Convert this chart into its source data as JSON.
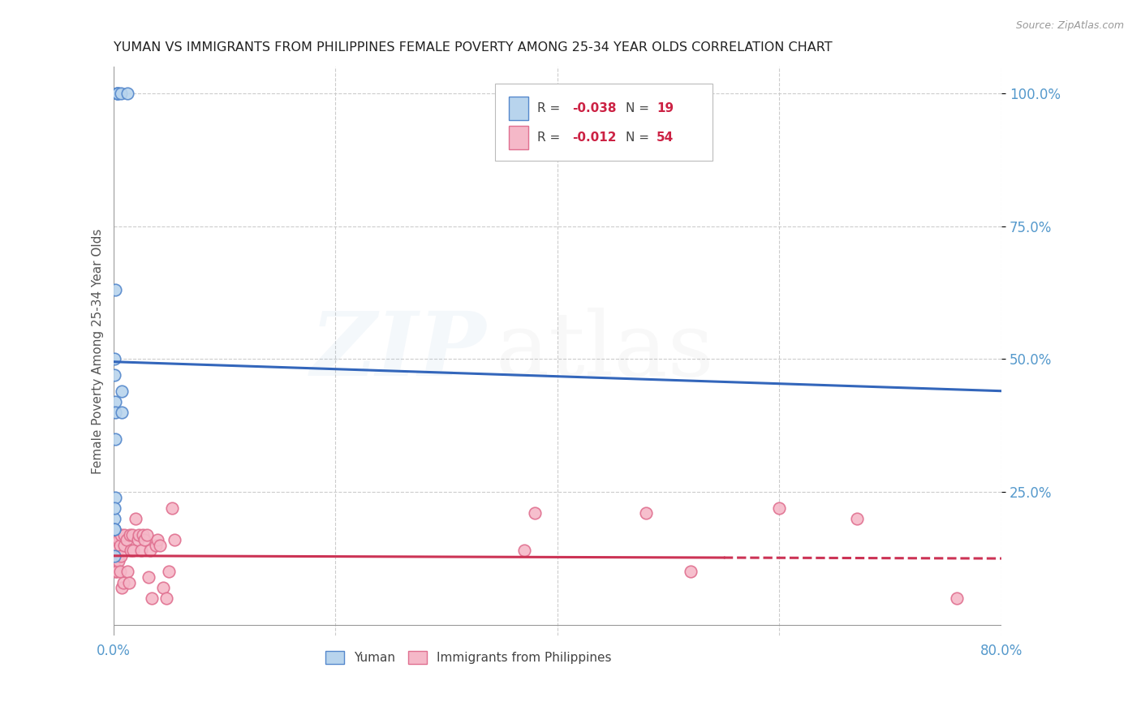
{
  "title": "YUMAN VS IMMIGRANTS FROM PHILIPPINES FEMALE POVERTY AMONG 25-34 YEAR OLDS CORRELATION CHART",
  "source": "Source: ZipAtlas.com",
  "ylabel": "Female Poverty Among 25-34 Year Olds",
  "xlim": [
    0.0,
    0.8
  ],
  "ylim": [
    -0.02,
    1.05
  ],
  "legend_r1": "R = -0.038",
  "legend_n1": "N = 19",
  "legend_r2": "R = -0.012",
  "legend_n2": "N = 54",
  "yuman_color": "#b8d4ed",
  "yuman_edge_color": "#5588cc",
  "philippines_color": "#f5b8c8",
  "philippines_edge_color": "#e07090",
  "trend_blue": "#3366bb",
  "trend_pink": "#cc3355",
  "background_color": "#ffffff",
  "grid_color": "#cccccc",
  "title_color": "#222222",
  "axis_label_color": "#555555",
  "tick_color": "#5599cc",
  "yuman_x": [
    0.003,
    0.004,
    0.004,
    0.007,
    0.013,
    0.002,
    0.002,
    0.002,
    0.002,
    0.002,
    0.001,
    0.001,
    0.001,
    0.001,
    0.001,
    0.008,
    0.008,
    0.001,
    0.001
  ],
  "yuman_y": [
    1.0,
    1.0,
    1.0,
    1.0,
    1.0,
    0.63,
    0.42,
    0.4,
    0.35,
    0.24,
    0.2,
    0.18,
    0.13,
    0.18,
    0.22,
    0.44,
    0.4,
    0.5,
    0.47
  ],
  "philippines_x": [
    0.001,
    0.001,
    0.001,
    0.002,
    0.002,
    0.002,
    0.002,
    0.003,
    0.003,
    0.003,
    0.004,
    0.004,
    0.005,
    0.005,
    0.006,
    0.006,
    0.007,
    0.007,
    0.008,
    0.009,
    0.01,
    0.01,
    0.012,
    0.013,
    0.014,
    0.015,
    0.016,
    0.017,
    0.018,
    0.02,
    0.022,
    0.023,
    0.025,
    0.027,
    0.028,
    0.03,
    0.032,
    0.033,
    0.035,
    0.038,
    0.04,
    0.042,
    0.045,
    0.048,
    0.05,
    0.053,
    0.055,
    0.37,
    0.38,
    0.48,
    0.52,
    0.6,
    0.67,
    0.76
  ],
  "philippines_y": [
    0.17,
    0.14,
    0.11,
    0.17,
    0.15,
    0.13,
    0.1,
    0.16,
    0.14,
    0.1,
    0.17,
    0.13,
    0.16,
    0.12,
    0.15,
    0.1,
    0.17,
    0.13,
    0.07,
    0.08,
    0.15,
    0.17,
    0.16,
    0.1,
    0.08,
    0.17,
    0.14,
    0.17,
    0.14,
    0.2,
    0.16,
    0.17,
    0.14,
    0.17,
    0.16,
    0.17,
    0.09,
    0.14,
    0.05,
    0.15,
    0.16,
    0.15,
    0.07,
    0.05,
    0.1,
    0.22,
    0.16,
    0.14,
    0.21,
    0.21,
    0.1,
    0.22,
    0.2,
    0.05
  ],
  "trend_blue_x0": 0.0,
  "trend_blue_x1": 0.8,
  "trend_blue_y0": 0.495,
  "trend_blue_y1": 0.44,
  "trend_pink_y0": 0.13,
  "trend_pink_y1": 0.125,
  "trend_solid_end": 0.55,
  "marker_size": 110,
  "watermark_alpha": 0.1
}
